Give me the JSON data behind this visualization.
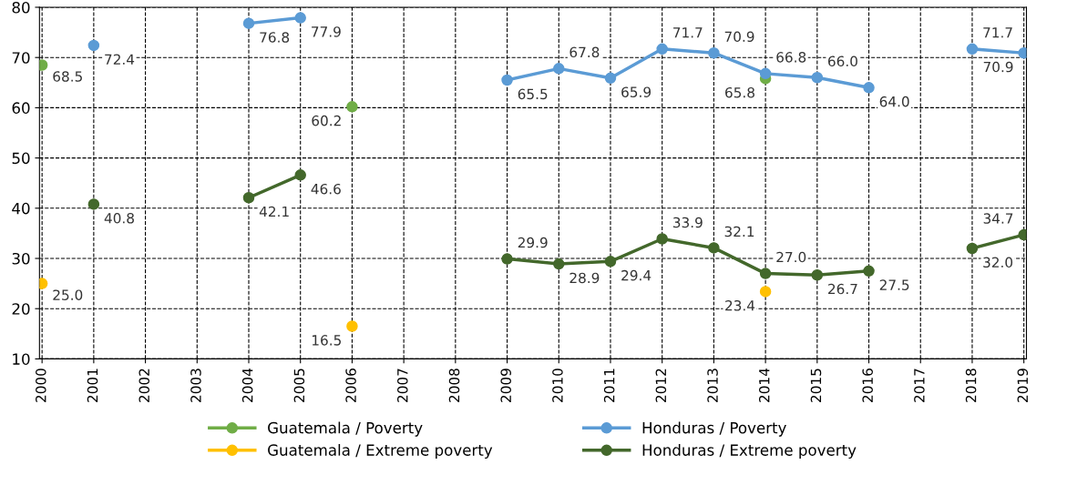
{
  "chart_data": {
    "type": "line",
    "categories": [
      "2000",
      "2001",
      "2002",
      "2003",
      "2004",
      "2005",
      "2006",
      "2007",
      "2008",
      "2009",
      "2010",
      "2011",
      "2012",
      "2013",
      "2014",
      "2015",
      "2016",
      "2017",
      "2018",
      "2019"
    ],
    "series": [
      {
        "name": "Guatemala / Poverty",
        "type": "scatter",
        "color": "#70ad47",
        "values": [
          68.5,
          null,
          null,
          null,
          null,
          null,
          60.2,
          null,
          null,
          null,
          null,
          null,
          null,
          null,
          65.8,
          null,
          null,
          null,
          null,
          null
        ],
        "value_labels": [
          "68.5",
          null,
          null,
          null,
          null,
          null,
          "60.2",
          null,
          null,
          null,
          null,
          null,
          null,
          null,
          "65.8",
          null,
          null,
          null,
          null,
          null
        ]
      },
      {
        "name": "Honduras / Poverty",
        "color": "#5b9bd5",
        "values": [
          null,
          72.4,
          null,
          null,
          76.8,
          77.9,
          null,
          null,
          null,
          65.5,
          67.8,
          65.9,
          71.7,
          70.9,
          66.8,
          66.0,
          64.0,
          null,
          71.7,
          70.9
        ],
        "value_labels": [
          null,
          "72.4",
          null,
          null,
          "76.8",
          "77.9",
          null,
          null,
          null,
          "65.5",
          "67.8",
          "65.9",
          "71.7",
          "70.9",
          "66.8",
          "66.0",
          "64.0",
          null,
          "71.7",
          "70.9"
        ]
      },
      {
        "name": "Guatemala / Extreme poverty",
        "type": "scatter",
        "color": "#ffc000",
        "values": [
          25.0,
          null,
          null,
          null,
          null,
          null,
          16.5,
          null,
          null,
          null,
          null,
          null,
          null,
          null,
          23.4,
          null,
          null,
          null,
          null,
          null
        ],
        "value_labels": [
          "25.0",
          null,
          null,
          null,
          null,
          null,
          "16.5",
          null,
          null,
          null,
          null,
          null,
          null,
          null,
          "23.4",
          null,
          null,
          null,
          null,
          null
        ]
      },
      {
        "name": "Honduras / Extreme poverty",
        "color": "#43682b",
        "values": [
          null,
          40.8,
          null,
          null,
          42.1,
          46.6,
          null,
          null,
          null,
          29.9,
          28.9,
          29.4,
          33.9,
          32.1,
          27.0,
          26.7,
          27.5,
          null,
          32.0,
          34.7
        ],
        "value_labels": [
          null,
          "40.8",
          null,
          null,
          "42.1",
          "46.6",
          null,
          null,
          null,
          "29.9",
          "28.9",
          "29.4",
          "33.9",
          "32.1",
          "27.0",
          "26.7",
          "27.5",
          null,
          "32.0",
          "34.7"
        ]
      }
    ],
    "ylim": [
      10,
      80
    ],
    "yticks": [
      10,
      20,
      30,
      40,
      50,
      60,
      70,
      80
    ],
    "grid": true,
    "legend": "bottom",
    "marker": "circle",
    "line_style": "solid"
  }
}
